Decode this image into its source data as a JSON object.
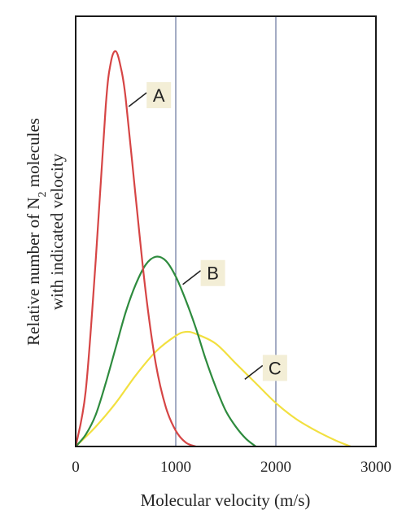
{
  "chart_data": {
    "type": "line",
    "xlabel": "Molecular velocity (m/s)",
    "ylabel_line1": "Relative number of N",
    "ylabel_subscript": "2",
    "ylabel_line1_tail": " molecules",
    "ylabel_line2": "with indicated velocity",
    "xlim": [
      0,
      3000
    ],
    "ylim": [
      0,
      1
    ],
    "x_ticks": [
      0,
      1000,
      2000,
      3000
    ],
    "x_tick_labels": [
      "0",
      "1000",
      "2000",
      "3000"
    ],
    "vertical_gridlines_at": [
      1000,
      2000
    ],
    "y_ticks": "none",
    "series": [
      {
        "name": "A",
        "color": "#d64545",
        "x": [
          0,
          100,
          200,
          300,
          350,
          400,
          450,
          500,
          600,
          700,
          800,
          900,
          1000,
          1100,
          1200
        ],
        "y": [
          0,
          0.14,
          0.47,
          0.86,
          0.97,
          1.0,
          0.96,
          0.88,
          0.63,
          0.39,
          0.21,
          0.1,
          0.04,
          0.01,
          0
        ]
      },
      {
        "name": "B",
        "color": "#2e8b3e",
        "x": [
          0,
          100,
          200,
          300,
          400,
          500,
          600,
          700,
          800,
          900,
          1000,
          1100,
          1200,
          1300,
          1400,
          1500,
          1600,
          1700,
          1800
        ],
        "y": [
          0,
          0.03,
          0.08,
          0.16,
          0.25,
          0.34,
          0.41,
          0.46,
          0.48,
          0.47,
          0.43,
          0.37,
          0.3,
          0.22,
          0.15,
          0.09,
          0.05,
          0.02,
          0
        ]
      },
      {
        "name": "C",
        "color": "#f2e040",
        "x": [
          0,
          200,
          400,
          600,
          800,
          1000,
          1100,
          1200,
          1400,
          1600,
          1800,
          2000,
          2200,
          2400,
          2600,
          2750
        ],
        "y": [
          0,
          0.05,
          0.11,
          0.18,
          0.24,
          0.28,
          0.29,
          0.285,
          0.26,
          0.21,
          0.16,
          0.11,
          0.07,
          0.04,
          0.015,
          0
        ]
      }
    ],
    "labels": [
      {
        "text": "A",
        "series": "A",
        "anchor_x": 530,
        "anchor_y": 0.86
      },
      {
        "text": "B",
        "series": "B",
        "anchor_x": 1070,
        "anchor_y": 0.41
      },
      {
        "text": "C",
        "series": "C",
        "anchor_x": 1690,
        "anchor_y": 0.17
      }
    ],
    "label_box_color": "#f3eed6",
    "frame_color": "#1a1a1a",
    "gridline_color": "#4a5a8a"
  }
}
